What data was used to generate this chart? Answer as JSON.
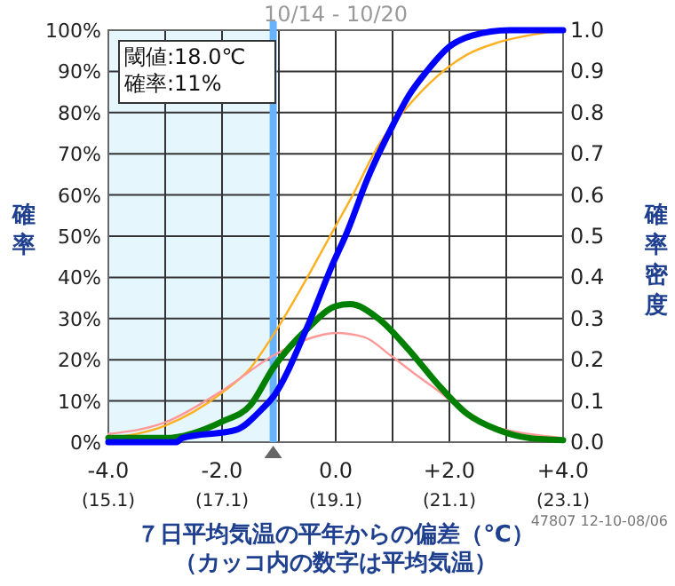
{
  "chart_data": {
    "type": "line",
    "title": "10/14 - 10/20",
    "xlabel": "７日平均気温の平年からの偏差（℃）（カッコ内の数字は平均気温）",
    "ylabel": "確率",
    "y2label": "確率密度",
    "xlim": [
      -4,
      4
    ],
    "ylim": [
      0,
      100
    ],
    "y2lim": [
      0,
      1
    ],
    "xticks": [
      {
        "value": -4,
        "label": "-4.0"
      },
      {
        "value": -3,
        "label": null
      },
      {
        "value": -2,
        "label": "-2.0"
      },
      {
        "value": -1,
        "label": null
      },
      {
        "value": 0,
        "label": "0.0"
      },
      {
        "value": 1,
        "label": null
      },
      {
        "value": 2,
        "label": "+2.0"
      },
      {
        "value": 3,
        "label": null
      },
      {
        "value": 4,
        "label": "+4.0"
      }
    ],
    "yticks": [
      {
        "value": 0,
        "label": "0%"
      },
      {
        "value": 10,
        "label": "10%"
      },
      {
        "value": 20,
        "label": "20%"
      },
      {
        "value": 30,
        "label": "30%"
      },
      {
        "value": 40,
        "label": "40%"
      },
      {
        "value": 50,
        "label": "50%"
      },
      {
        "value": 60,
        "label": "60%"
      },
      {
        "value": 70,
        "label": "70%"
      },
      {
        "value": 80,
        "label": "80%"
      },
      {
        "value": 90,
        "label": "90%"
      },
      {
        "value": 100,
        "label": "100%"
      }
    ],
    "y2ticks": [
      {
        "value": 0,
        "label": "0.0"
      },
      {
        "value": 0.1,
        "label": "0.1"
      },
      {
        "value": 0.2,
        "label": "0.2"
      },
      {
        "value": 0.3,
        "label": "0.3"
      },
      {
        "value": 0.4,
        "label": "0.4"
      },
      {
        "value": 0.5,
        "label": "0.5"
      },
      {
        "value": 0.6,
        "label": "0.6"
      },
      {
        "value": 0.7,
        "label": "0.7"
      },
      {
        "value": 0.8,
        "label": "0.8"
      },
      {
        "value": 0.9,
        "label": "0.9"
      },
      {
        "value": 1,
        "label": "1.0"
      }
    ],
    "grid": true,
    "marker": "none",
    "series": [
      {
        "color": "#ffb020",
        "x": [
          -4,
          -3,
          -2,
          -1.5,
          -1.1,
          -0.5,
          -0.06,
          0.3,
          0.75,
          1.3,
          1.8,
          2.3,
          2.85,
          3.5,
          4
        ],
        "values": [
          1,
          4,
          12,
          18,
          26,
          40,
          51,
          60,
          72,
          82,
          89,
          94,
          97,
          99,
          100
        ]
      },
      {
        "color": "#ff9999",
        "axis": "y2",
        "x": [
          -4,
          -3,
          -2,
          -1.1,
          -0.5,
          0,
          0.5,
          0.97,
          1.4,
          1.8,
          2.3,
          2.85,
          3.4,
          4
        ],
        "values": [
          0.02,
          0.048,
          0.125,
          0.21,
          0.25,
          0.265,
          0.255,
          0.21,
          0.165,
          0.125,
          0.07,
          0.035,
          0.02,
          0.01
        ]
      },
      {
        "color": "#008000",
        "axis": "y2",
        "x": [
          -4,
          -3,
          -2,
          -1.5,
          -1.1,
          -0.5,
          0,
          0.25,
          0.75,
          1.28,
          1.8,
          2.3,
          2.85,
          3.4,
          4
        ],
        "values": [
          0.01,
          0.01,
          0.05,
          0.09,
          0.18,
          0.275,
          0.33,
          0.335,
          0.3,
          0.225,
          0.14,
          0.07,
          0.03,
          0.01,
          0.005
        ]
      },
      {
        "color": "#0000ff",
        "x": [
          -4,
          -2.8,
          -2.7,
          -1.75,
          -1.3,
          -1.1,
          -0.5,
          -0.06,
          0.2,
          0.56,
          0.97,
          1.28,
          1.6,
          2,
          2.4,
          3.06,
          4
        ],
        "values": [
          0,
          0,
          1,
          3,
          8,
          11,
          28,
          43,
          51,
          64,
          76,
          84,
          90,
          96,
          98.7,
          100,
          100
        ]
      }
    ],
    "bands": [
      {
        "axis": "x",
        "from": -4,
        "to": -1.1,
        "color": "#e6f6fd"
      }
    ],
    "ref_lines": [
      {
        "axis": "x",
        "value": -1.1,
        "color": "#66b3ff"
      }
    ],
    "annotations": [
      "閾値:18.0℃",
      "確率:11%",
      "47807 12-10-08/06",
      "(15.1)",
      "(17.1)",
      "(19.1)",
      "(21.1)",
      "(23.1)"
    ]
  }
}
